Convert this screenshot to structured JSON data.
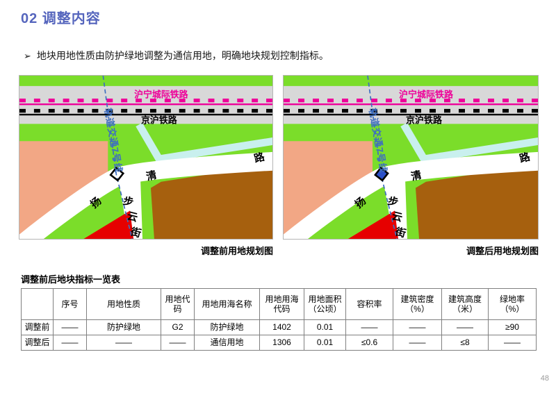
{
  "page": {
    "title": "02 调整内容",
    "bullet_marker": "➢",
    "bullet_text": "地块用地性质由防护绿地调整为通信用地，明确地块规划控制指标。",
    "page_number": "48"
  },
  "maps": {
    "caption_before": "调整前用地规划图",
    "caption_after": "调整后用地规划图",
    "labels": {
      "rail_intercity": "沪宁城际铁路",
      "rail_jinghu": "京沪铁路",
      "metro_line": "轨道交通7号线",
      "road_char_qing": "清",
      "road_char_lu": "路",
      "road_char_yang": "扬",
      "street_char_bu": "步",
      "street_char_yun": "云",
      "street_char_jie": "街"
    },
    "colors": {
      "title_blue": "#5565BD",
      "green": "#7BDD2A",
      "gray": "#D8D8D8",
      "magenta": "#EE0099",
      "cyan": "#C9F0EE",
      "salmon": "#F2A785",
      "brown": "#A6600E",
      "red": "#E60000",
      "road": "#FFFFFF",
      "rail_black": "#000000",
      "metro_blue": "#3E6EC0",
      "marker_before": "none",
      "marker_after": "#2B50C8"
    }
  },
  "table": {
    "title": "调整前后地块指标一览表",
    "headers": [
      "",
      "序号",
      "用地性质",
      "用地代码",
      "用地用海名称",
      "用地用海代码",
      "用地面积（公顷）",
      "容积率",
      "建筑密度（%）",
      "建筑高度（米）",
      "绿地率（%）"
    ],
    "rows": [
      [
        "调整前",
        "——",
        "防护绿地",
        "G2",
        "防护绿地",
        "1402",
        "0.01",
        "——",
        "——",
        "——",
        "≥90"
      ],
      [
        "调整后",
        "——",
        "——",
        "——",
        "通信用地",
        "1306",
        "0.01",
        "≤0.6",
        "——",
        "≤8",
        "——"
      ]
    ]
  }
}
